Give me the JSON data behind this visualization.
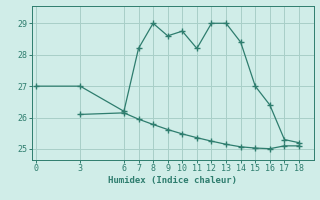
{
  "line1_x": [
    0,
    3,
    6,
    7,
    8,
    9,
    10,
    11,
    12,
    13,
    14,
    15,
    16,
    17,
    18
  ],
  "line1_y": [
    27.0,
    27.0,
    26.2,
    28.2,
    29.0,
    28.6,
    28.75,
    28.2,
    29.0,
    29.0,
    28.4,
    27.0,
    26.4,
    25.3,
    25.2
  ],
  "line2_x": [
    3,
    6,
    7,
    8,
    9,
    10,
    11,
    12,
    13,
    14,
    15,
    16,
    17,
    18
  ],
  "line2_y": [
    26.1,
    26.15,
    25.95,
    25.78,
    25.62,
    25.48,
    25.36,
    25.25,
    25.15,
    25.07,
    25.03,
    25.01,
    25.1,
    25.1
  ],
  "line_color": "#2e7d6e",
  "bg_color": "#d0ede8",
  "grid_color": "#a8cfc8",
  "xlabel": "Humidex (Indice chaleur)",
  "xticks": [
    0,
    3,
    6,
    7,
    8,
    9,
    10,
    11,
    12,
    13,
    14,
    15,
    16,
    17,
    18
  ],
  "yticks": [
    25,
    26,
    27,
    28,
    29
  ],
  "xlim": [
    -0.3,
    19.0
  ],
  "ylim": [
    24.65,
    29.55
  ],
  "label_fontsize": 6.5,
  "tick_fontsize": 6.0
}
